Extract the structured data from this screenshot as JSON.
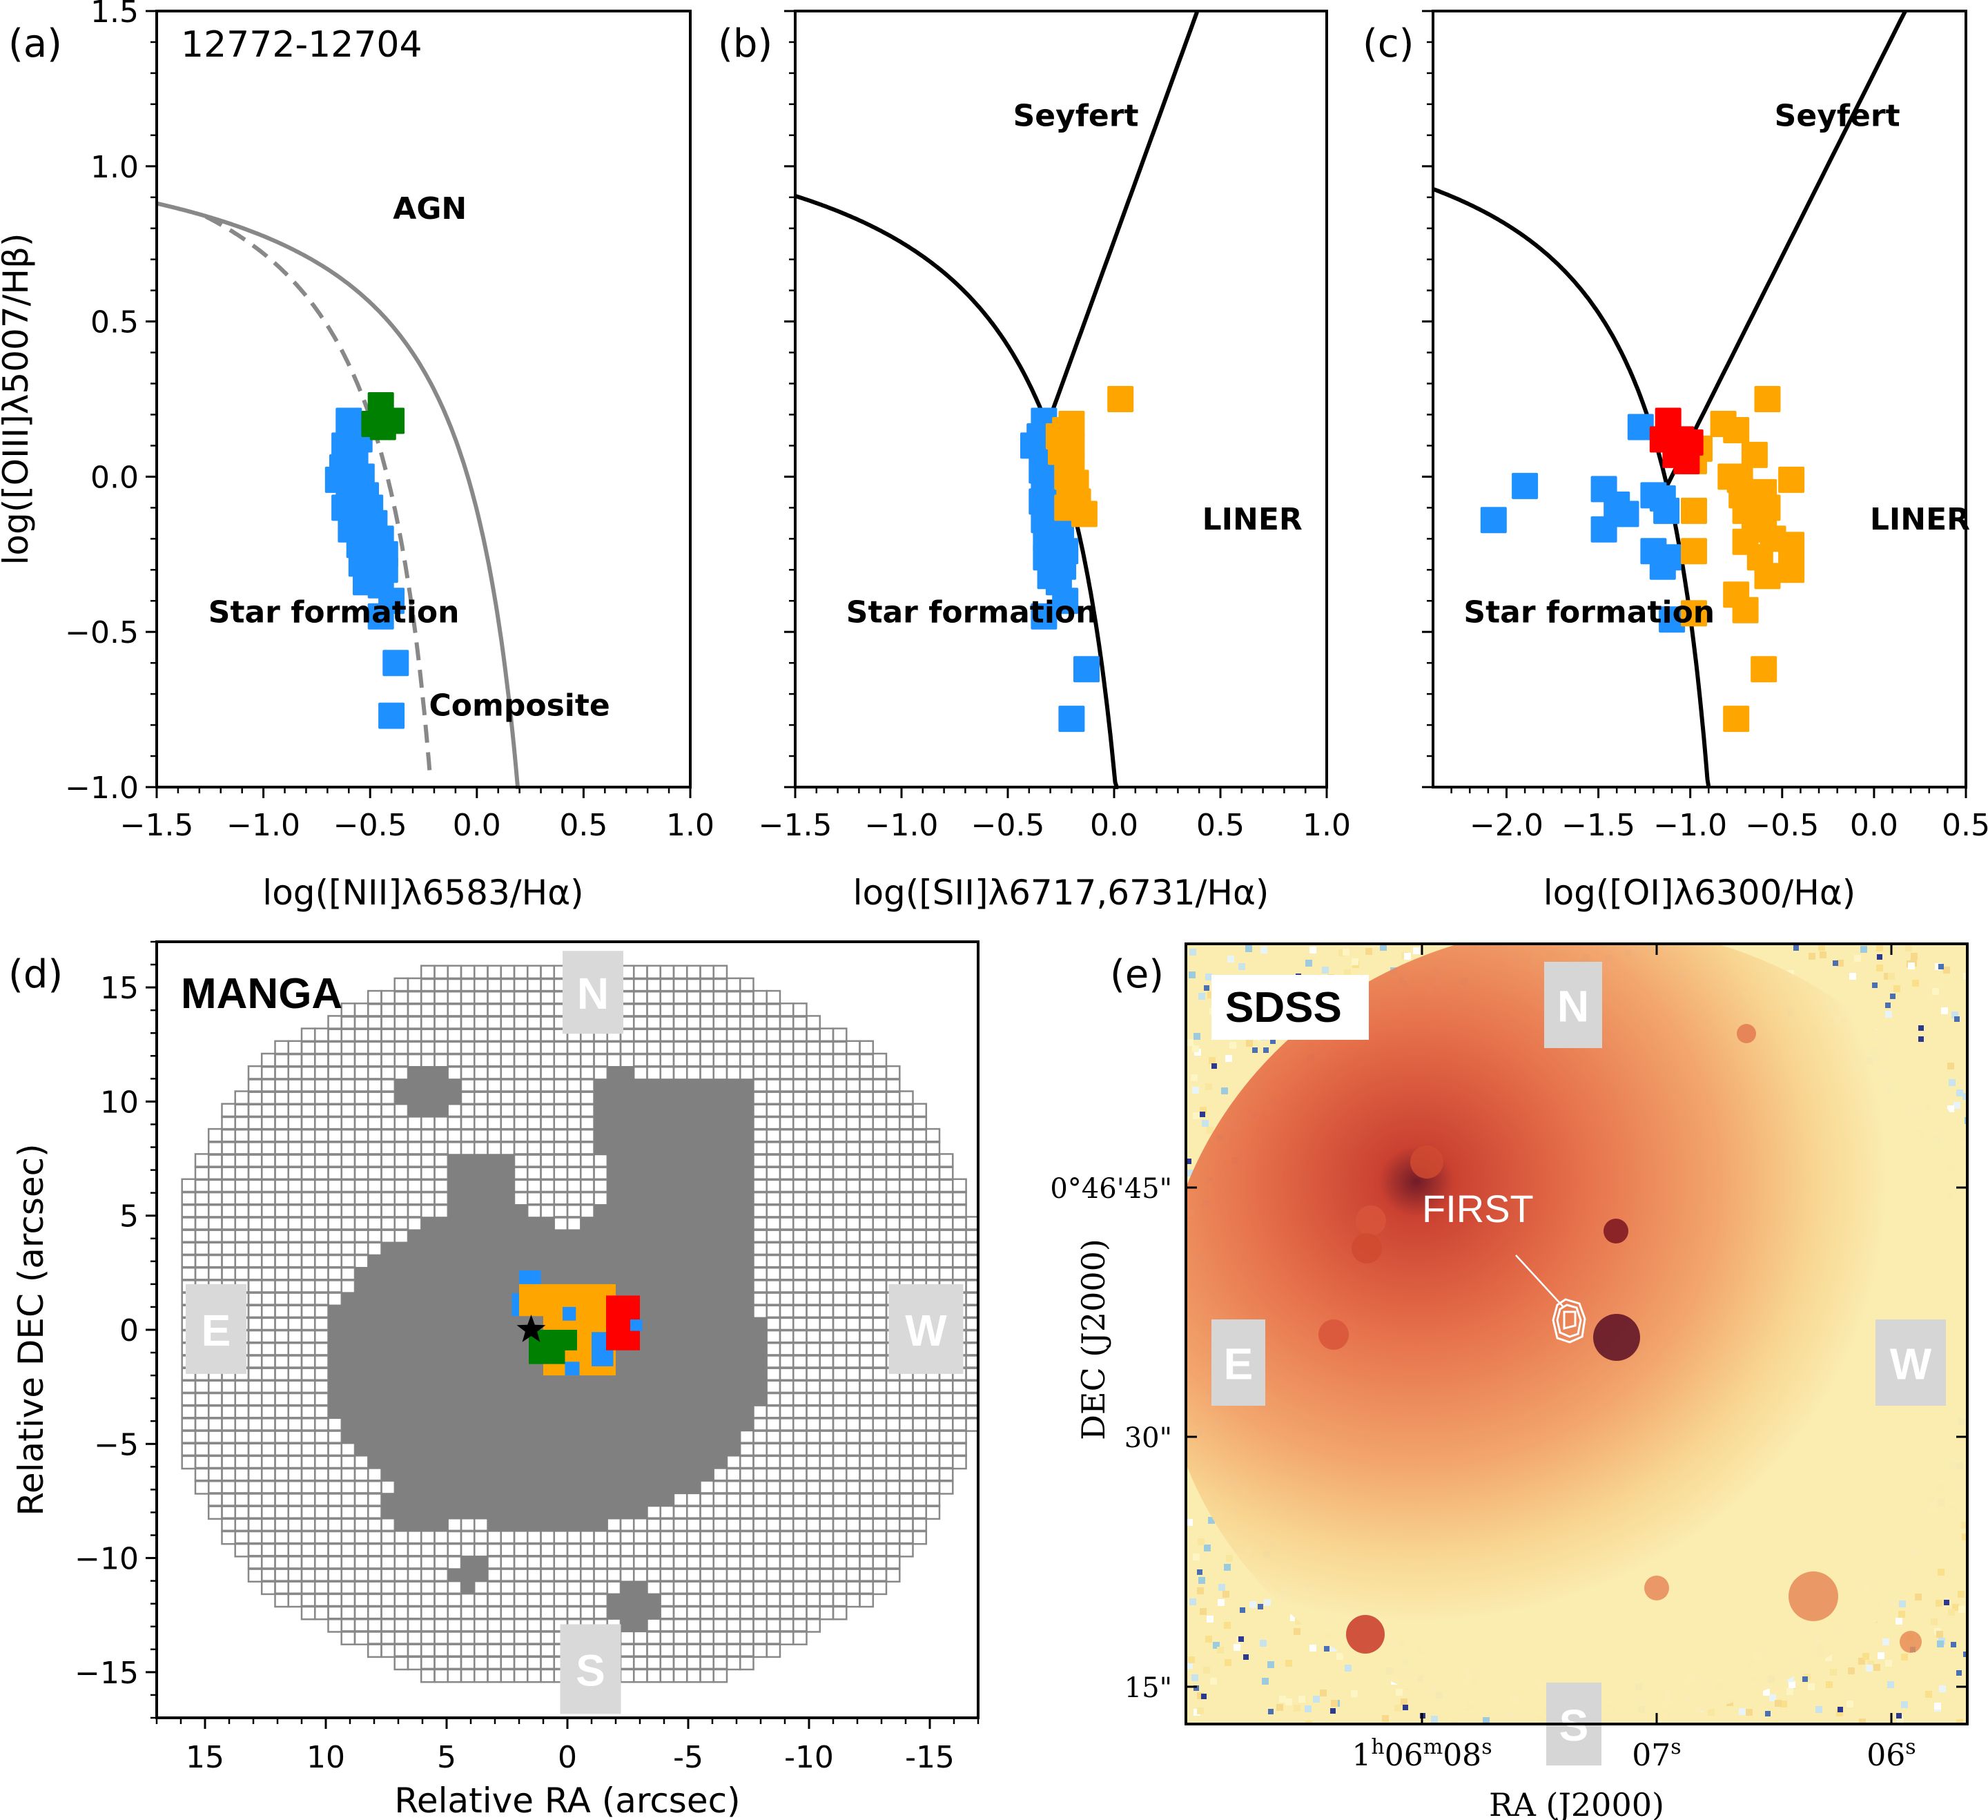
{
  "figure_id_text": "12772-12704",
  "colors": {
    "star_formation": "#1e90ff",
    "composite": "#008000",
    "liner": "#ffa500",
    "seyfert": "#ff0000",
    "spaxel_gray": "#808080",
    "demarcation_gray": "#888888"
  },
  "chart_data": [
    {
      "panel": "(a)",
      "type": "scatter",
      "xlabel": "log([NII]λ6583/Hα)",
      "ylabel": "log([OIII]λ5007/Hβ)",
      "xlim": [
        -1.5,
        1.0
      ],
      "ylim": [
        -1.0,
        1.5
      ],
      "xticks": [
        "−1.5",
        "−1.0",
        "−0.5",
        "0.0",
        "0.5",
        "1.0"
      ],
      "xtick_values": [
        -1.5,
        -1.0,
        -0.5,
        0.0,
        0.5,
        1.0
      ],
      "yticks": [
        "−1.0",
        "−0.5",
        "0.0",
        "0.5",
        "1.0",
        "1.5"
      ],
      "ytick_values": [
        -1.0,
        -0.5,
        0.0,
        0.5,
        1.0,
        1.5
      ],
      "annotations": [
        {
          "text": "AGN",
          "x": -0.22,
          "y": 0.83
        },
        {
          "text": "Star formation",
          "x": -0.67,
          "y": -0.47
        },
        {
          "text": "Composite",
          "x": 0.2,
          "y": -0.77
        }
      ],
      "lines": [
        {
          "name": "Kewley01",
          "style": "solid",
          "color": "#888888"
        },
        {
          "name": "Kauffmann03",
          "style": "dashed",
          "color": "#888888"
        }
      ],
      "series": [
        {
          "name": "Star formation",
          "color": "#1e90ff",
          "points": [
            [
              -0.6,
              0.18
            ],
            [
              -0.58,
              0.15
            ],
            [
              -0.62,
              0.1
            ],
            [
              -0.55,
              0.12
            ],
            [
              -0.63,
              0.03
            ],
            [
              -0.57,
              0.05
            ],
            [
              -0.65,
              -0.01
            ],
            [
              -0.6,
              -0.03
            ],
            [
              -0.54,
              0.0
            ],
            [
              -0.58,
              -0.08
            ],
            [
              -0.52,
              -0.06
            ],
            [
              -0.62,
              -0.1
            ],
            [
              -0.56,
              -0.12
            ],
            [
              -0.5,
              -0.1
            ],
            [
              -0.59,
              -0.17
            ],
            [
              -0.53,
              -0.16
            ],
            [
              -0.48,
              -0.15
            ],
            [
              -0.55,
              -0.22
            ],
            [
              -0.49,
              -0.22
            ],
            [
              -0.45,
              -0.2
            ],
            [
              -0.54,
              -0.28
            ],
            [
              -0.47,
              -0.27
            ],
            [
              -0.43,
              -0.25
            ],
            [
              -0.5,
              -0.32
            ],
            [
              -0.43,
              -0.3
            ],
            [
              -0.52,
              -0.34
            ],
            [
              -0.45,
              -0.35
            ],
            [
              -0.4,
              -0.4
            ],
            [
              -0.45,
              -0.45
            ],
            [
              -0.38,
              -0.6
            ],
            [
              -0.4,
              -0.77
            ]
          ]
        },
        {
          "name": "Composite",
          "color": "#008000",
          "points": [
            [
              -0.45,
              0.23
            ],
            [
              -0.4,
              0.18
            ],
            [
              -0.48,
              0.17
            ],
            [
              -0.44,
              0.16
            ]
          ]
        }
      ]
    },
    {
      "panel": "(b)",
      "type": "scatter",
      "xlabel": "log([SII]λ6717,6731/Hα)",
      "ylabel": "",
      "xlim": [
        -1.5,
        1.0
      ],
      "ylim": [
        -1.0,
        1.5
      ],
      "xticks": [
        "−1.5",
        "−1.0",
        "−0.5",
        "0.0",
        "0.5",
        "1.0"
      ],
      "xtick_values": [
        -1.5,
        -1.0,
        -0.5,
        0.0,
        0.5,
        1.0
      ],
      "annotations": [
        {
          "text": "Seyfert",
          "x": -0.18,
          "y": 1.13
        },
        {
          "text": "LINER",
          "x": 0.65,
          "y": -0.17
        },
        {
          "text": "Star formation",
          "x": -0.67,
          "y": -0.47
        }
      ],
      "lines": [
        {
          "name": "Kewley06 SF/AGN",
          "style": "solid",
          "color": "#000000"
        },
        {
          "name": "Seyfert/LINER",
          "style": "solid",
          "color": "#000000"
        }
      ],
      "series": [
        {
          "name": "Star formation",
          "color": "#1e90ff",
          "points": [
            [
              -0.33,
              0.18
            ],
            [
              -0.35,
              0.13
            ],
            [
              -0.38,
              0.1
            ],
            [
              -0.32,
              0.08
            ],
            [
              -0.34,
              0.02
            ],
            [
              -0.3,
              0.04
            ],
            [
              -0.33,
              -0.03
            ],
            [
              -0.29,
              -0.05
            ],
            [
              -0.34,
              -0.08
            ],
            [
              -0.3,
              -0.1
            ],
            [
              -0.26,
              -0.12
            ],
            [
              -0.33,
              -0.14
            ],
            [
              -0.28,
              -0.16
            ],
            [
              -0.25,
              -0.17
            ],
            [
              -0.32,
              -0.2
            ],
            [
              -0.27,
              -0.22
            ],
            [
              -0.23,
              -0.24
            ],
            [
              -0.32,
              -0.26
            ],
            [
              -0.28,
              -0.28
            ],
            [
              -0.24,
              -0.29
            ],
            [
              -0.3,
              -0.32
            ],
            [
              -0.26,
              -0.34
            ],
            [
              -0.23,
              -0.4
            ],
            [
              -0.33,
              -0.45
            ],
            [
              -0.13,
              -0.62
            ],
            [
              -0.2,
              -0.78
            ]
          ]
        },
        {
          "name": "LINER",
          "color": "#ffa500",
          "points": [
            [
              0.03,
              0.25
            ],
            [
              -0.2,
              0.17
            ],
            [
              -0.23,
              0.15
            ],
            [
              -0.26,
              0.13
            ],
            [
              -0.2,
              0.1
            ],
            [
              -0.25,
              0.08
            ],
            [
              -0.2,
              0.03
            ],
            [
              -0.22,
              0.0
            ],
            [
              -0.18,
              -0.02
            ],
            [
              -0.21,
              -0.05
            ],
            [
              -0.17,
              -0.08
            ],
            [
              -0.22,
              -0.1
            ],
            [
              -0.14,
              -0.12
            ]
          ]
        }
      ]
    },
    {
      "panel": "(c)",
      "type": "scatter",
      "xlabel": "log([OI]λ6300/Hα)",
      "ylabel": "",
      "xlim": [
        -2.4,
        0.5
      ],
      "ylim": [
        -1.0,
        1.5
      ],
      "xticks": [
        "−2.0",
        "−1.5",
        "−1.0",
        "−0.5",
        "0.0",
        "0.5"
      ],
      "xtick_values": [
        -2.0,
        -1.5,
        -1.0,
        -0.5,
        0.0,
        0.5
      ],
      "annotations": [
        {
          "text": "Seyfert",
          "x": -0.2,
          "y": 1.13
        },
        {
          "text": "LINER",
          "x": 0.25,
          "y": -0.17
        },
        {
          "text": "Star formation",
          "x": -1.55,
          "y": -0.47
        }
      ],
      "lines": [
        {
          "name": "Kewley06 SF/AGN",
          "style": "solid",
          "color": "#000000"
        },
        {
          "name": "Seyfert/LINER",
          "style": "solid",
          "color": "#000000"
        }
      ],
      "series": [
        {
          "name": "Star formation",
          "color": "#1e90ff",
          "points": [
            [
              -2.07,
              -0.14
            ],
            [
              -1.9,
              -0.03
            ],
            [
              -1.47,
              -0.04
            ],
            [
              -1.4,
              -0.09
            ],
            [
              -1.35,
              -0.12
            ],
            [
              -1.47,
              -0.17
            ],
            [
              -1.27,
              0.16
            ],
            [
              -1.2,
              -0.06
            ],
            [
              -1.15,
              -0.07
            ],
            [
              -1.13,
              -0.11
            ],
            [
              -1.2,
              -0.24
            ],
            [
              -1.15,
              -0.29
            ],
            [
              -1.12,
              -0.26
            ],
            [
              -1.1,
              -0.46
            ]
          ]
        },
        {
          "name": "LINER",
          "color": "#ffa500",
          "points": [
            [
              -0.58,
              0.25
            ],
            [
              -0.82,
              0.17
            ],
            [
              -0.75,
              0.15
            ],
            [
              -0.65,
              0.07
            ],
            [
              -0.95,
              0.09
            ],
            [
              -0.98,
              0.05
            ],
            [
              -0.78,
              0.0
            ],
            [
              -0.73,
              -0.01
            ],
            [
              -0.72,
              -0.06
            ],
            [
              -0.6,
              -0.05
            ],
            [
              -0.45,
              -0.01
            ],
            [
              -0.98,
              -0.11
            ],
            [
              -0.7,
              -0.11
            ],
            [
              -0.58,
              -0.1
            ],
            [
              -0.65,
              -0.15
            ],
            [
              -0.6,
              -0.17
            ],
            [
              -0.55,
              -0.2
            ],
            [
              -0.7,
              -0.21
            ],
            [
              -0.62,
              -0.26
            ],
            [
              -0.45,
              -0.22
            ],
            [
              -0.98,
              -0.24
            ],
            [
              -0.58,
              -0.32
            ],
            [
              -0.45,
              -0.3
            ],
            [
              -0.75,
              -0.38
            ],
            [
              -0.7,
              -0.43
            ],
            [
              -0.98,
              -0.44
            ],
            [
              -0.6,
              -0.62
            ],
            [
              -0.75,
              -0.78
            ]
          ]
        },
        {
          "name": "Seyfert",
          "color": "#ff0000",
          "points": [
            [
              -1.12,
              0.18
            ],
            [
              -1.15,
              0.12
            ],
            [
              -1.05,
              0.12
            ],
            [
              -1.0,
              0.11
            ],
            [
              -1.08,
              0.07
            ],
            [
              -1.02,
              0.05
            ]
          ]
        }
      ]
    },
    {
      "panel": "(d)",
      "type": "heatmap",
      "title": "MANGA",
      "xlabel": "Relative RA (arcsec)",
      "ylabel": "Relative DEC (arcsec)",
      "xlim": [
        17,
        -17
      ],
      "ylim": [
        -17,
        17
      ],
      "xticks": [
        "15",
        "10",
        "5",
        "0",
        "-5",
        "-10",
        "-15"
      ],
      "xtick_values": [
        15,
        10,
        5,
        0,
        -5,
        -10,
        -15
      ],
      "yticks": [
        "−15",
        "−10",
        "−5",
        "0",
        "5",
        "10",
        "15"
      ],
      "ytick_values": [
        -15,
        -10,
        -5,
        0,
        5,
        10,
        15
      ],
      "compass": {
        "north": "N",
        "south": "S",
        "east": "E",
        "west": "W"
      },
      "marker": {
        "type": "star",
        "ra": 1.5,
        "dec": 0.0
      },
      "classified_regions": [
        {
          "class": "LINER",
          "color": "#ffa500"
        },
        {
          "class": "Seyfert",
          "color": "#ff0000"
        },
        {
          "class": "Composite",
          "color": "#008000"
        },
        {
          "class": "Star formation",
          "color": "#1e90ff"
        }
      ]
    },
    {
      "panel": "(e)",
      "type": "heatmap",
      "title": "SDSS",
      "xlabel": "RA (J2000)",
      "ylabel": "DEC (J2000)",
      "xticks": [
        "1h06m08s",
        "07s",
        "06s"
      ],
      "xtick_display": [
        {
          "main": "1",
          "sup1": "h",
          "mid": "06",
          "sup2": "m",
          "end": "08",
          "sup3": "s"
        },
        {
          "main": "07",
          "sup3": "s"
        },
        {
          "main": "06",
          "sup3": "s"
        }
      ],
      "yticks": [
        "0°46'45\"",
        "30\"",
        "15\""
      ],
      "compass": {
        "north": "N",
        "south": "S",
        "east": "E",
        "west": "W"
      },
      "contour_label": "FIRST"
    }
  ]
}
